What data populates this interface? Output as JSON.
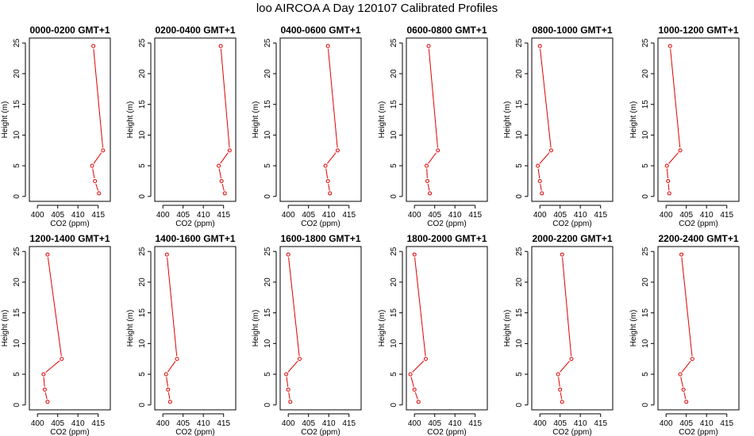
{
  "figure": {
    "title": "loo AIRCOA A  Day 120107  Calibrated Profiles"
  },
  "colors": {
    "profile": "#e00000",
    "axis": "#000000"
  },
  "chart_data": [
    {
      "type": "line",
      "title": "0000-0200 GMT+1",
      "xlabel": "CO2 (ppm)",
      "ylabel": "Height (m)",
      "xlim": [
        398,
        418
      ],
      "ylim": [
        -0.8,
        25.8
      ],
      "xticks": [
        400,
        405,
        410,
        415
      ],
      "yticks": [
        0,
        5,
        10,
        15,
        20,
        25
      ],
      "series": [
        {
          "x": [
            415.2,
            414.2,
            413.5,
            416.2,
            413.8
          ],
          "y": [
            0.5,
            2.5,
            5,
            7.5,
            24.5
          ]
        }
      ]
    },
    {
      "type": "line",
      "title": "0200-0400 GMT+1",
      "xlabel": "CO2 (ppm)",
      "ylabel": "Height (m)",
      "xlim": [
        398,
        418
      ],
      "ylim": [
        -0.8,
        25.8
      ],
      "xticks": [
        400,
        405,
        410,
        415
      ],
      "yticks": [
        0,
        5,
        10,
        15,
        20,
        25
      ],
      "series": [
        {
          "x": [
            415.3,
            414.5,
            413.8,
            416.5,
            414.3
          ],
          "y": [
            0.5,
            2.5,
            5,
            7.5,
            24.5
          ]
        }
      ]
    },
    {
      "type": "line",
      "title": "0400-0600 GMT+1",
      "xlabel": "CO2 (ppm)",
      "ylabel": "Height (m)",
      "xlim": [
        398,
        418
      ],
      "ylim": [
        -0.8,
        25.8
      ],
      "xticks": [
        400,
        405,
        410,
        415
      ],
      "yticks": [
        0,
        5,
        10,
        15,
        20,
        25
      ],
      "series": [
        {
          "x": [
            410.3,
            409.8,
            409.2,
            412.2,
            409.8
          ],
          "y": [
            0.5,
            2.5,
            5,
            7.5,
            24.5
          ]
        }
      ]
    },
    {
      "type": "line",
      "title": "0600-0800 GMT+1",
      "xlabel": "CO2 (ppm)",
      "ylabel": "Height (m)",
      "xlim": [
        398,
        418
      ],
      "ylim": [
        -0.8,
        25.8
      ],
      "xticks": [
        400,
        405,
        410,
        415
      ],
      "yticks": [
        0,
        5,
        10,
        15,
        20,
        25
      ],
      "series": [
        {
          "x": [
            403.8,
            403.2,
            403.0,
            405.8,
            403.5
          ],
          "y": [
            0.5,
            2.5,
            5,
            7.5,
            24.5
          ]
        }
      ]
    },
    {
      "type": "line",
      "title": "0800-1000 GMT+1",
      "xlabel": "CO2 (ppm)",
      "ylabel": "Height (m)",
      "xlim": [
        398,
        418
      ],
      "ylim": [
        -0.8,
        25.8
      ],
      "xticks": [
        400,
        405,
        410,
        415
      ],
      "yticks": [
        0,
        5,
        10,
        15,
        20,
        25
      ],
      "series": [
        {
          "x": [
            400.5,
            400.0,
            399.5,
            402.8,
            400.0
          ],
          "y": [
            0.5,
            2.5,
            5,
            7.5,
            24.5
          ]
        }
      ]
    },
    {
      "type": "line",
      "title": "1000-1200 GMT+1",
      "xlabel": "CO2 (ppm)",
      "ylabel": "Height (m)",
      "xlim": [
        398,
        418
      ],
      "ylim": [
        -0.8,
        25.8
      ],
      "xticks": [
        400,
        405,
        410,
        415
      ],
      "yticks": [
        0,
        5,
        10,
        15,
        20,
        25
      ],
      "series": [
        {
          "x": [
            400.8,
            400.5,
            400.2,
            403.5,
            401.0
          ],
          "y": [
            0.5,
            2.5,
            5,
            7.5,
            24.5
          ]
        }
      ]
    },
    {
      "type": "line",
      "title": "1200-1400 GMT+1",
      "xlabel": "CO2 (ppm)",
      "ylabel": "Height (m)",
      "xlim": [
        398,
        418
      ],
      "ylim": [
        -0.8,
        25.8
      ],
      "xticks": [
        400,
        405,
        410,
        415
      ],
      "yticks": [
        0,
        5,
        10,
        15,
        20,
        25
      ],
      "series": [
        {
          "x": [
            402.5,
            401.8,
            401.5,
            406.0,
            402.5
          ],
          "y": [
            0.5,
            2.5,
            5,
            7.5,
            24.5
          ]
        }
      ]
    },
    {
      "type": "line",
      "title": "1400-1600 GMT+1",
      "xlabel": "CO2 (ppm)",
      "ylabel": "Height (m)",
      "xlim": [
        398,
        418
      ],
      "ylim": [
        -0.8,
        25.8
      ],
      "xticks": [
        400,
        405,
        410,
        415
      ],
      "yticks": [
        0,
        5,
        10,
        15,
        20,
        25
      ],
      "series": [
        {
          "x": [
            401.8,
            401.3,
            400.8,
            403.5,
            401.0
          ],
          "y": [
            0.5,
            2.5,
            5,
            7.5,
            24.5
          ]
        }
      ]
    },
    {
      "type": "line",
      "title": "1600-1800 GMT+1",
      "xlabel": "CO2 (ppm)",
      "ylabel": "Height (m)",
      "xlim": [
        398,
        418
      ],
      "ylim": [
        -0.8,
        25.8
      ],
      "xticks": [
        400,
        405,
        410,
        415
      ],
      "yticks": [
        0,
        5,
        10,
        15,
        20,
        25
      ],
      "series": [
        {
          "x": [
            400.5,
            400.0,
            399.5,
            402.8,
            400.0
          ],
          "y": [
            0.5,
            2.5,
            5,
            7.5,
            24.5
          ]
        }
      ]
    },
    {
      "type": "line",
      "title": "1800-2000 GMT+1",
      "xlabel": "CO2 (ppm)",
      "ylabel": "Height (m)",
      "xlim": [
        398,
        418
      ],
      "ylim": [
        -0.8,
        25.8
      ],
      "xticks": [
        400,
        405,
        410,
        415
      ],
      "yticks": [
        0,
        5,
        10,
        15,
        20,
        25
      ],
      "series": [
        {
          "x": [
            401.0,
            400.0,
            399.0,
            402.8,
            400.0
          ],
          "y": [
            0.5,
            2.5,
            5,
            7.5,
            24.5
          ]
        }
      ]
    },
    {
      "type": "line",
      "title": "2000-2200 GMT+1",
      "xlabel": "CO2 (ppm)",
      "ylabel": "Height (m)",
      "xlim": [
        398,
        418
      ],
      "ylim": [
        -0.8,
        25.8
      ],
      "xticks": [
        400,
        405,
        410,
        415
      ],
      "yticks": [
        0,
        5,
        10,
        15,
        20,
        25
      ],
      "series": [
        {
          "x": [
            405.5,
            405.0,
            404.5,
            407.8,
            405.5
          ],
          "y": [
            0.5,
            2.5,
            5,
            7.5,
            24.5
          ]
        }
      ]
    },
    {
      "type": "line",
      "title": "2200-2400 GMT+1",
      "xlabel": "CO2 (ppm)",
      "ylabel": "Height (m)",
      "xlim": [
        398,
        418
      ],
      "ylim": [
        -0.8,
        25.8
      ],
      "xticks": [
        400,
        405,
        410,
        415
      ],
      "yticks": [
        0,
        5,
        10,
        15,
        20,
        25
      ],
      "series": [
        {
          "x": [
            405.0,
            404.3,
            403.5,
            406.5,
            403.8
          ],
          "y": [
            0.5,
            2.5,
            5,
            7.5,
            24.5
          ]
        }
      ]
    }
  ]
}
